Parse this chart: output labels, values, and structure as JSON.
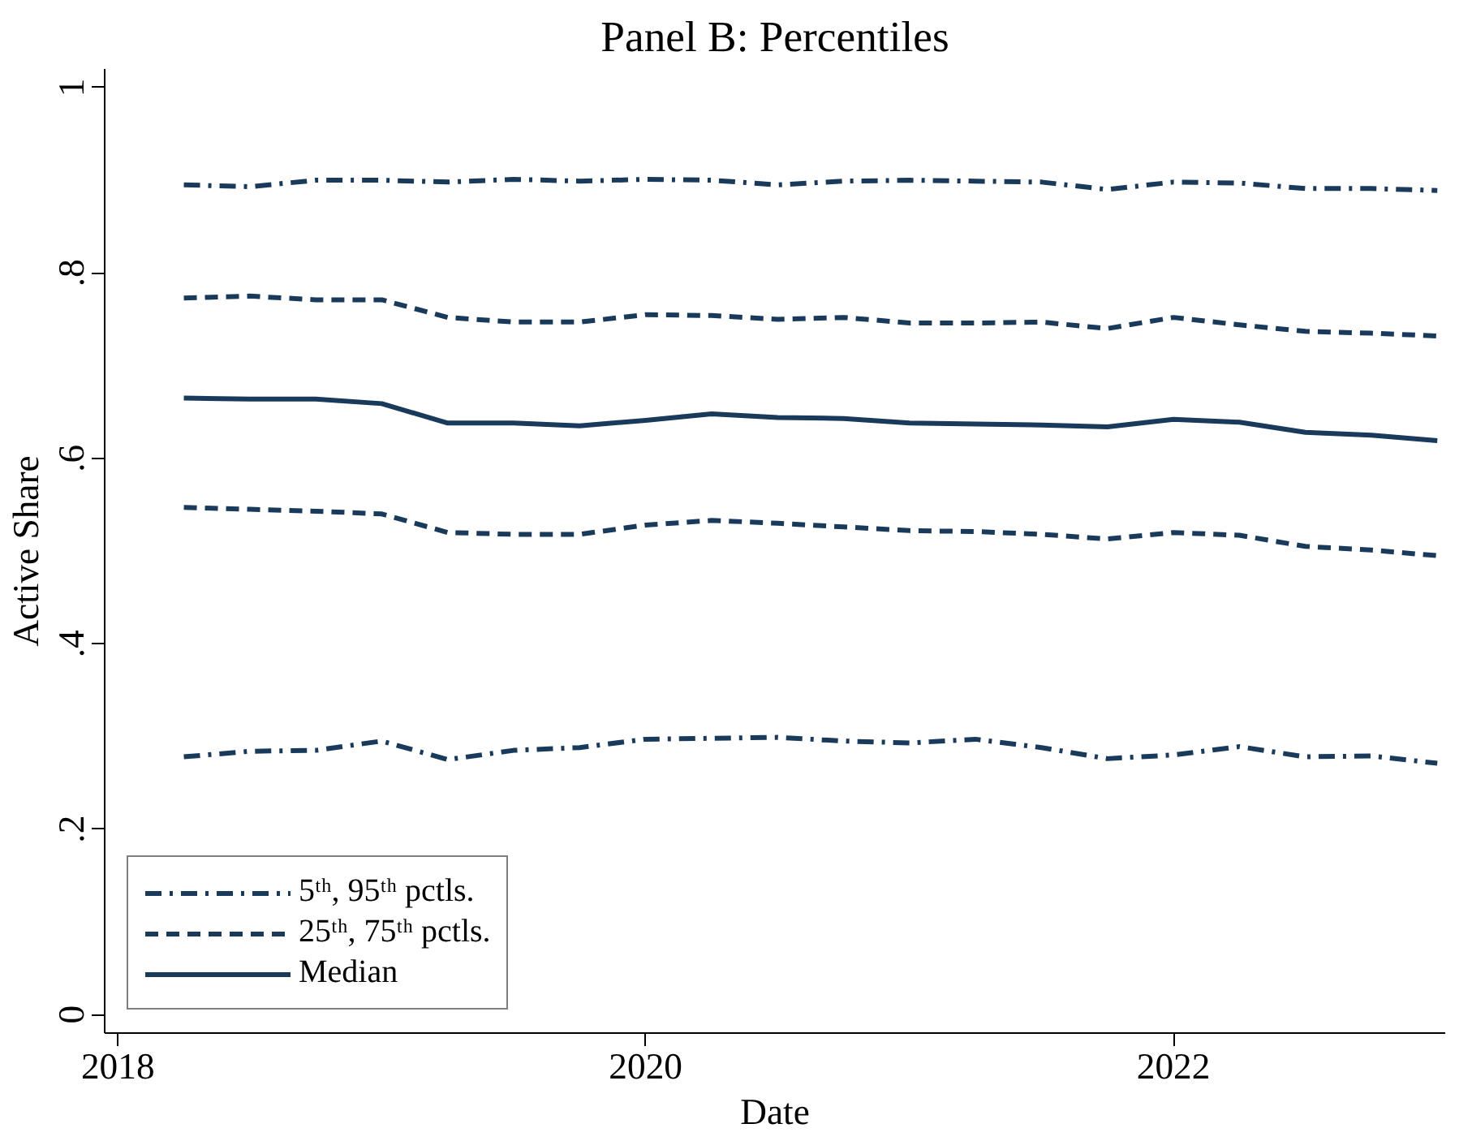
{
  "chart_data": {
    "type": "line",
    "title": "Panel B: Percentiles",
    "xlabel": "Date",
    "ylabel": "Active Share",
    "x": [
      2018.25,
      2018.5,
      2018.75,
      2019.0,
      2019.25,
      2019.5,
      2019.75,
      2020.0,
      2020.25,
      2020.5,
      2020.75,
      2021.0,
      2021.25,
      2021.5,
      2021.75,
      2022.0,
      2022.25,
      2022.5,
      2022.75,
      2023.0
    ],
    "series": [
      {
        "name": "5ᵗʰ, 95ᵗʰ pctls.",
        "color": "#1a3a5c",
        "line_style": "dashdot",
        "values": [
          0.278,
          0.284,
          0.285,
          0.295,
          0.275,
          0.285,
          0.288,
          0.297,
          0.298,
          0.299,
          0.295,
          0.293,
          0.297,
          0.288,
          0.276,
          0.28,
          0.289,
          0.278,
          0.279,
          0.271
        ]
      },
      {
        "color": "#1a3a5c",
        "line_style": "dashdot",
        "values": [
          0.895,
          0.893,
          0.9,
          0.9,
          0.898,
          0.901,
          0.899,
          0.901,
          0.9,
          0.895,
          0.899,
          0.9,
          0.899,
          0.898,
          0.89,
          0.898,
          0.897,
          0.891,
          0.891,
          0.889
        ]
      },
      {
        "name": "25ᵗʰ, 75ᵗʰ pctls.",
        "color": "#1a3a5c",
        "line_style": "dashed",
        "values": [
          0.547,
          0.545,
          0.543,
          0.54,
          0.52,
          0.518,
          0.518,
          0.528,
          0.533,
          0.53,
          0.526,
          0.522,
          0.521,
          0.518,
          0.513,
          0.52,
          0.517,
          0.505,
          0.501,
          0.495
        ]
      },
      {
        "color": "#1a3a5c",
        "line_style": "dashed",
        "values": [
          0.773,
          0.775,
          0.771,
          0.771,
          0.752,
          0.747,
          0.747,
          0.755,
          0.754,
          0.75,
          0.752,
          0.746,
          0.746,
          0.747,
          0.74,
          0.752,
          0.744,
          0.737,
          0.735,
          0.732
        ]
      },
      {
        "name": "Median",
        "color": "#1a3a5c",
        "line_style": "solid",
        "values": [
          0.665,
          0.664,
          0.664,
          0.659,
          0.638,
          0.638,
          0.635,
          0.641,
          0.648,
          0.644,
          0.643,
          0.638,
          0.637,
          0.636,
          0.634,
          0.642,
          0.639,
          0.628,
          0.625,
          0.619
        ]
      }
    ],
    "xlim": [
      2017.95,
      2023.03
    ],
    "xticks": [
      2018,
      2020,
      2022
    ],
    "ylim": [
      -0.02,
      1.02
    ],
    "yticks": [
      {
        "value": 0,
        "label": "0"
      },
      {
        "value": 0.2,
        "label": ".2"
      },
      {
        "value": 0.4,
        "label": ".4"
      },
      {
        "value": 0.6,
        "label": ".6"
      },
      {
        "value": 0.8,
        "label": ".8"
      },
      {
        "value": 1,
        "label": "1"
      }
    ],
    "grid": false,
    "legend": "bottom left",
    "marker": "none"
  }
}
